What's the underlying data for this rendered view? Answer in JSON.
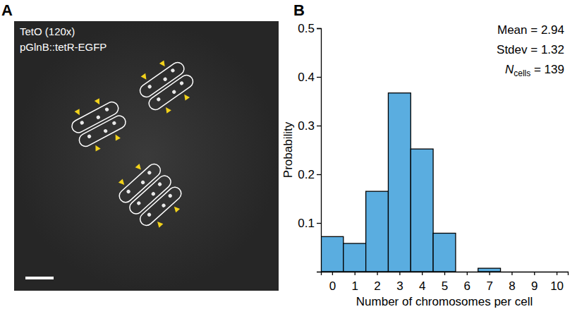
{
  "chart_data": {
    "type": "histogram",
    "panel_label": "B",
    "annotations": [
      {
        "parts": [
          {
            "text": "Mean = 2.94"
          }
        ]
      },
      {
        "parts": [
          {
            "text": "Stdev = 1.32"
          }
        ]
      },
      {
        "parts": [
          {
            "text": "N",
            "style": "italic"
          },
          {
            "text": "cells",
            "style": "subscript"
          },
          {
            "text": " = 139"
          }
        ]
      }
    ],
    "x_label": "Number of chromosomes per cell",
    "y_label": "Probability",
    "bins": [
      -0.5,
      0.5,
      1.5,
      2.5,
      3.5,
      4.5,
      5.5,
      6.5,
      7.5,
      8.5,
      9.5,
      10.5
    ],
    "values": [
      0.072,
      0.058,
      0.165,
      0.367,
      0.252,
      0.079,
      0,
      0.007,
      0,
      0,
      0
    ],
    "color": "#5aade0",
    "xlim": [
      -0.5,
      10.5
    ],
    "xticks": [
      0,
      1,
      2,
      3,
      4,
      5,
      6,
      7,
      8,
      9,
      10
    ],
    "ylim": [
      0,
      0.5
    ],
    "yticks": [
      0.1,
      0.2,
      0.3,
      0.4,
      0.5
    ]
  },
  "image_panel": {
    "panel_label": "A",
    "labels": [
      "TetO (120x)",
      "pGlnB::tetR-EGFP"
    ]
  }
}
